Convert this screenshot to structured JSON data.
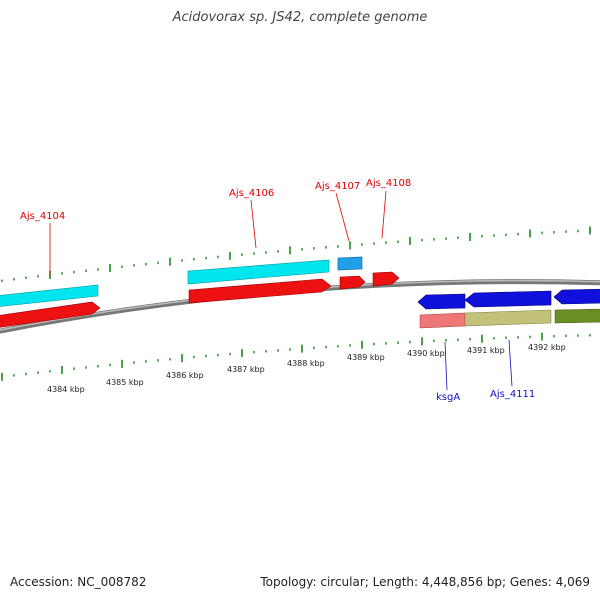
{
  "title": "Acidovorax sp. JS42, complete genome",
  "footer": {
    "accession": "Accession: NC_008782",
    "summary": "Topology: circular; Length: 4,448,856 bp; Genes: 4,069"
  },
  "colors": {
    "forward_label": "#e00000",
    "reverse_label": "#1010c0",
    "backbone": "#888888",
    "tick": "#1a8a1a",
    "cyan": "#00e5ee",
    "sky": "#1fa0e8",
    "red": "#ee1111",
    "blue": "#1010dd",
    "pink": "#ee7777",
    "olive_light": "#c2c27a",
    "olive_dark": "#6b8e23"
  },
  "scale_labels": [
    "4384 kbp",
    "4385 kbp",
    "4386 kbp",
    "4387 kbp",
    "4388 kbp",
    "4389 kbp",
    "4390 kbp",
    "4391 kbp",
    "4392 kbp"
  ],
  "forward_genes": [
    "Ajs_4104",
    "Ajs_4106",
    "Ajs_4107",
    "Ajs_4108"
  ],
  "reverse_genes": [
    "ksgA",
    "Ajs_4111"
  ]
}
